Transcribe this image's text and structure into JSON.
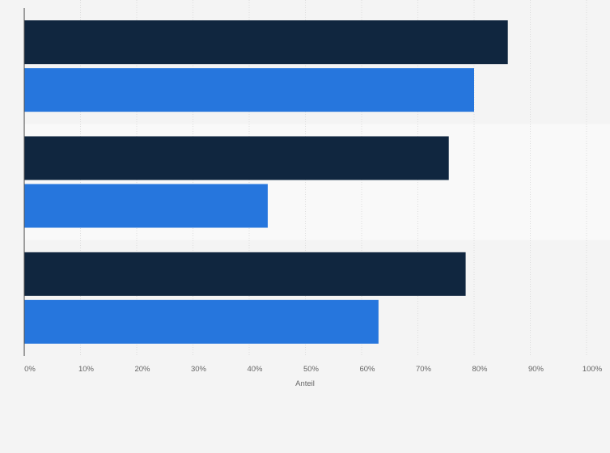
{
  "chart_data": {
    "type": "bar",
    "orientation": "horizontal",
    "categories": [
      "",
      "",
      ""
    ],
    "series": [
      {
        "values": [
          86,
          75.5,
          78.5
        ],
        "color": "#10263f"
      },
      {
        "values": [
          80,
          43.3,
          63
        ],
        "color": "#2676dd"
      }
    ],
    "xlabel": "Anteil",
    "ylabel": "",
    "xlim": [
      0,
      100
    ],
    "x_ticks": [
      0,
      10,
      20,
      30,
      40,
      50,
      60,
      70,
      80,
      90,
      100
    ],
    "x_tick_labels": [
      "0%",
      "10%",
      "20%",
      "30%",
      "40%",
      "50%",
      "60%",
      "70%",
      "80%",
      "90%",
      "100%"
    ],
    "grid": true,
    "legend": "none",
    "colors": {
      "background": "#f4f4f4",
      "band_alt": "#f9f9f9",
      "grid": "#dddddd",
      "axis": "#444444",
      "text": "#666666"
    }
  }
}
